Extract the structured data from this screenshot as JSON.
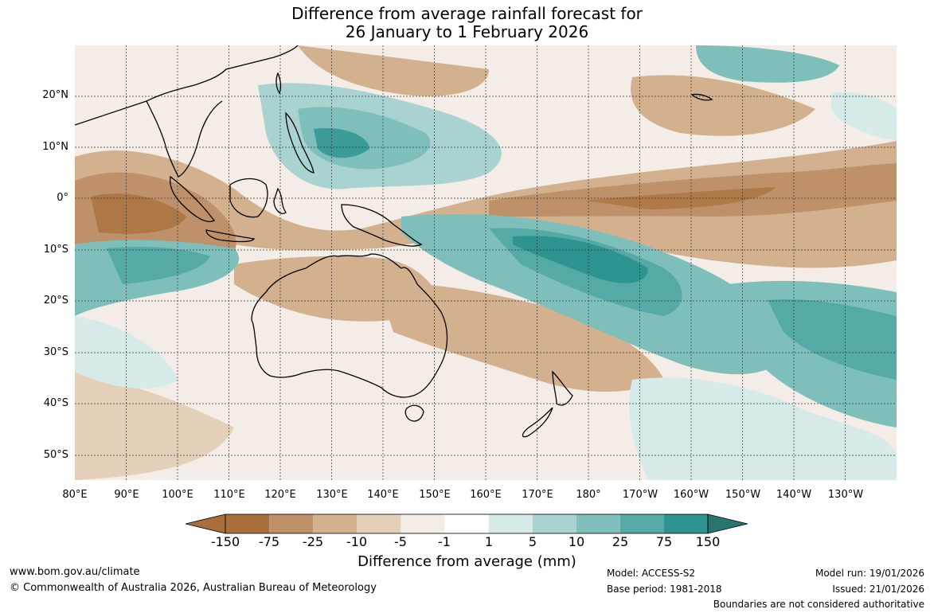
{
  "title": {
    "line1": "Difference from average rainfall forecast for",
    "line2": "26 January to 1 February 2026"
  },
  "map": {
    "lat_labels": [
      "20°N",
      "10°N",
      "0°",
      "10°S",
      "20°S",
      "30°S",
      "40°S",
      "50°S"
    ],
    "lon_labels": [
      "80°E",
      "90°E",
      "100°E",
      "110°E",
      "120°E",
      "130°E",
      "140°E",
      "150°E",
      "160°E",
      "170°E",
      "180°",
      "170°W",
      "160°W",
      "150°W",
      "140°W",
      "130°W"
    ],
    "colors": {
      "dry_150": "#a86f3b",
      "dry_75": "#bf916a",
      "dry_25": "#d3b18f",
      "dry_10": "#e4cfb8",
      "dry_5": "#f4ece6",
      "neutral": "#ffffff",
      "wet_1": "#d6eae9",
      "wet_5": "#a9d3d0",
      "wet_10": "#7fbfbb",
      "wet_25": "#55aaa6",
      "wet_75": "#2e9490",
      "wet_150": "#2a7470"
    }
  },
  "colorbar": {
    "labels": [
      "-150",
      "-75",
      "-25",
      "-10",
      "-5",
      "-1",
      "1",
      "5",
      "10",
      "25",
      "75",
      "150"
    ],
    "colors": [
      "#a86f3b",
      "#bf916a",
      "#d3b18f",
      "#e4cfb8",
      "#f4ece6",
      "#ffffff",
      "#d6eae9",
      "#a9d3d0",
      "#7fbfbb",
      "#55aaa6",
      "#2e9490"
    ],
    "end_low": "#a86f3b",
    "end_high": "#2a7470",
    "title": "Difference from average (mm)"
  },
  "footer": {
    "website": "www.bom.gov.au/climate",
    "copyright": "© Commonwealth of Australia 2026, Australian Bureau of Meteorology",
    "model": "Model: ACCESS-S2",
    "base_period": "Base period: 1981-2018",
    "model_run": "Model run: 19/01/2026",
    "issued": "Issued: 21/01/2026",
    "disclaimer": "Boundaries are not considered authoritative"
  }
}
